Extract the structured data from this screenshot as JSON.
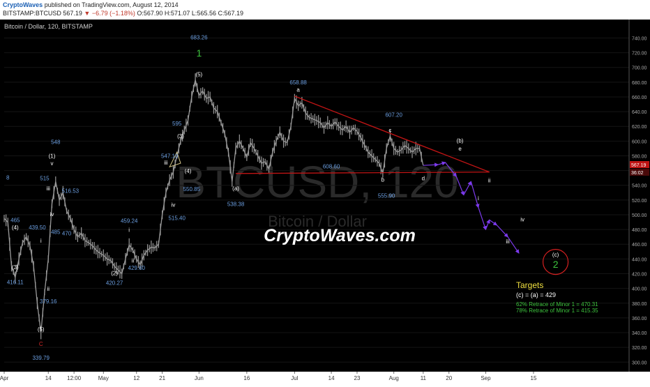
{
  "header": {
    "author": "CryptoWaves",
    "published": "published on TradingView.com, August 12, 2014",
    "symbol": "BITSTAMP:BTCUSD",
    "price": "567.19",
    "change": "▼ −6.79 (−1.18%)",
    "ohlc": "O:567.90 H:571.07 L:565.56 C:567.19"
  },
  "chart_data": {
    "type": "line",
    "title": "Bitcoin / Dollar, 120, BITSTAMP",
    "watermark": {
      "symbol": "BTCUSD, 120",
      "name": "Bitcoin / Dollar"
    },
    "signature": "CryptoWaves.com",
    "ylim": [
      287,
      748
    ],
    "xlim": [
      0,
      170
    ],
    "y_ticks": [
      300,
      320,
      340,
      360,
      380,
      400,
      420,
      440,
      460,
      480,
      500,
      520,
      540,
      560,
      580,
      600,
      620,
      640,
      660,
      680,
      700,
      720,
      740
    ],
    "x_ticks": [
      {
        "label": "Apr",
        "x": 0
      },
      {
        "label": "14",
        "x": 12
      },
      {
        "label": "12:00",
        "x": 19
      },
      {
        "label": "May",
        "x": 27
      },
      {
        "label": "12",
        "x": 36
      },
      {
        "label": "21",
        "x": 43
      },
      {
        "label": "Jun",
        "x": 53
      },
      {
        "label": "16",
        "x": 66
      },
      {
        "label": "Jul",
        "x": 79
      },
      {
        "label": "14",
        "x": 89
      },
      {
        "label": "23",
        "x": 96
      },
      {
        "label": "Aug",
        "x": 106
      },
      {
        "label": "11",
        "x": 114
      },
      {
        "label": "20",
        "x": 121
      },
      {
        "label": "Sep",
        "x": 131
      },
      {
        "label": "15",
        "x": 144
      }
    ],
    "price_label": {
      "value": 567.19,
      "text": "567.19",
      "countdown": "36:02"
    },
    "price_series": [
      [
        0,
        495
      ],
      [
        1,
        490
      ],
      [
        2,
        430
      ],
      [
        3,
        415
      ],
      [
        4,
        440
      ],
      [
        5,
        462
      ],
      [
        6,
        470
      ],
      [
        7,
        458
      ],
      [
        8,
        430
      ],
      [
        9,
        380
      ],
      [
        10,
        340
      ],
      [
        11,
        395
      ],
      [
        12,
        440
      ],
      [
        13,
        515
      ],
      [
        14,
        545
      ],
      [
        15,
        520
      ],
      [
        16,
        530
      ],
      [
        17,
        505
      ],
      [
        18,
        495
      ],
      [
        19,
        480
      ],
      [
        20,
        470
      ],
      [
        21,
        475
      ],
      [
        22,
        465
      ],
      [
        23,
        462
      ],
      [
        24,
        458
      ],
      [
        25,
        452
      ],
      [
        26,
        448
      ],
      [
        27,
        445
      ],
      [
        28,
        440
      ],
      [
        29,
        438
      ],
      [
        30,
        430
      ],
      [
        31,
        425
      ],
      [
        32,
        420
      ],
      [
        33,
        440
      ],
      [
        34,
        459
      ],
      [
        35,
        452
      ],
      [
        36,
        440
      ],
      [
        37,
        432
      ],
      [
        38,
        445
      ],
      [
        39,
        452
      ],
      [
        40,
        456
      ],
      [
        41,
        455
      ],
      [
        42,
        460
      ],
      [
        43,
        500
      ],
      [
        44,
        530
      ],
      [
        45,
        547
      ],
      [
        46,
        558
      ],
      [
        47,
        580
      ],
      [
        48,
        600
      ],
      [
        49,
        615
      ],
      [
        50,
        628
      ],
      [
        51,
        660
      ],
      [
        52,
        683
      ],
      [
        53,
        662
      ],
      [
        54,
        668
      ],
      [
        55,
        658
      ],
      [
        56,
        660
      ],
      [
        57,
        645
      ],
      [
        58,
        640
      ],
      [
        59,
        625
      ],
      [
        60,
        610
      ],
      [
        61,
        585
      ],
      [
        62,
        545
      ],
      [
        63,
        590
      ],
      [
        64,
        600
      ],
      [
        65,
        590
      ],
      [
        66,
        578
      ],
      [
        67,
        598
      ],
      [
        68,
        590
      ],
      [
        69,
        580
      ],
      [
        70,
        570
      ],
      [
        71,
        572
      ],
      [
        72,
        562
      ],
      [
        73,
        585
      ],
      [
        74,
        600
      ],
      [
        75,
        612
      ],
      [
        76,
        600
      ],
      [
        77,
        598
      ],
      [
        78,
        620
      ],
      [
        79,
        658
      ],
      [
        80,
        648
      ],
      [
        81,
        652
      ],
      [
        82,
        638
      ],
      [
        83,
        632
      ],
      [
        84,
        630
      ],
      [
        85,
        628
      ],
      [
        86,
        625
      ],
      [
        87,
        618
      ],
      [
        88,
        625
      ],
      [
        89,
        620
      ],
      [
        90,
        626
      ],
      [
        91,
        620
      ],
      [
        92,
        615
      ],
      [
        93,
        620
      ],
      [
        94,
        612
      ],
      [
        95,
        618
      ],
      [
        96,
        613
      ],
      [
        97,
        605
      ],
      [
        98,
        595
      ],
      [
        99,
        585
      ],
      [
        100,
        580
      ],
      [
        101,
        575
      ],
      [
        102,
        570
      ],
      [
        103,
        556
      ],
      [
        104,
        590
      ],
      [
        105,
        607
      ],
      [
        106,
        590
      ],
      [
        107,
        585
      ],
      [
        108,
        588
      ],
      [
        109,
        594
      ],
      [
        110,
        590
      ],
      [
        111,
        585
      ],
      [
        112,
        590
      ],
      [
        113,
        590
      ],
      [
        114,
        567
      ]
    ],
    "triangle_upper": [
      [
        79,
        661
      ],
      [
        132,
        558
      ]
    ],
    "triangle_lower": [
      [
        63,
        556
      ],
      [
        132,
        558
      ]
    ],
    "small_triangle": [
      [
        45,
        565
      ],
      [
        47,
        585
      ],
      [
        48,
        570
      ]
    ],
    "projection": [
      [
        114,
        567
      ],
      [
        118,
        568
      ],
      [
        120,
        571
      ],
      [
        123,
        552
      ],
      [
        125,
        527
      ],
      [
        127,
        545
      ],
      [
        129,
        510
      ],
      [
        131,
        480
      ],
      [
        132,
        493
      ],
      [
        134,
        486
      ],
      [
        137,
        470
      ],
      [
        140,
        448
      ]
    ],
    "wave_labels": [
      {
        "x": 13,
        "y": 577,
        "text": "(1)",
        "color": "#ffffff"
      },
      {
        "x": 13,
        "y": 567,
        "text": "v",
        "color": "#ffffff"
      },
      {
        "x": 11,
        "y": 547,
        "text": "515",
        "color": "#6b9ee0"
      },
      {
        "x": 12,
        "y": 533,
        "text": "iii",
        "color": "#ffffff"
      },
      {
        "x": 13,
        "y": 498,
        "text": "iv",
        "color": "#ffffff"
      },
      {
        "x": 18,
        "y": 530,
        "text": "516.53",
        "color": "#6b9ee0"
      },
      {
        "x": 14,
        "y": 596,
        "text": "548",
        "color": "#6b9ee0"
      },
      {
        "x": 3,
        "y": 490,
        "text": "465",
        "color": "#6b9ee0"
      },
      {
        "x": 3,
        "y": 480,
        "text": "(4)",
        "color": "#ffffff"
      },
      {
        "x": 9,
        "y": 480,
        "text": "439.50",
        "color": "#6b9ee0"
      },
      {
        "x": 14,
        "y": 474,
        "text": "485",
        "color": "#6b9ee0"
      },
      {
        "x": 17,
        "y": 472,
        "text": "470",
        "color": "#6b9ee0"
      },
      {
        "x": 10,
        "y": 462,
        "text": "i",
        "color": "#ffffff"
      },
      {
        "x": 3,
        "y": 426,
        "text": "(3)",
        "color": "#ffffff"
      },
      {
        "x": 3,
        "y": 406,
        "text": "416.11",
        "color": "#6b9ee0"
      },
      {
        "x": 12,
        "y": 397,
        "text": "ii",
        "color": "#ffffff"
      },
      {
        "x": 12,
        "y": 380,
        "text": "379.16",
        "color": "#6b9ee0"
      },
      {
        "x": 10,
        "y": 342,
        "text": "(5)",
        "color": "#ffffff"
      },
      {
        "x": 10,
        "y": 322,
        "text": "C",
        "color": "#d92a2a"
      },
      {
        "x": 10,
        "y": 303,
        "text": "339.79",
        "color": "#6b9ee0"
      },
      {
        "x": 1,
        "y": 548,
        "text": "8",
        "color": "#6b9ee0"
      },
      {
        "x": 34,
        "y": 489,
        "text": "459.24",
        "color": "#6b9ee0"
      },
      {
        "x": 34,
        "y": 477,
        "text": "i",
        "color": "#ffffff"
      },
      {
        "x": 30,
        "y": 418,
        "text": "(2)",
        "color": "#ffffff"
      },
      {
        "x": 30,
        "y": 405,
        "text": "420.27",
        "color": "#6b9ee0"
      },
      {
        "x": 35,
        "y": 435,
        "text": "ii",
        "color": "#ffffff"
      },
      {
        "x": 36,
        "y": 425,
        "text": "429.60",
        "color": "#6b9ee0"
      },
      {
        "x": 45,
        "y": 577,
        "text": "547.10",
        "color": "#6b9ee0"
      },
      {
        "x": 44,
        "y": 568,
        "text": "iii",
        "color": "#ffffff"
      },
      {
        "x": 46,
        "y": 511,
        "text": "iv",
        "color": "#ffffff"
      },
      {
        "x": 47,
        "y": 493,
        "text": "515.40",
        "color": "#6b9ee0"
      },
      {
        "x": 48,
        "y": 604,
        "text": "(3)",
        "color": "#ffffff"
      },
      {
        "x": 47,
        "y": 621,
        "text": "595",
        "color": "#6b9ee0"
      },
      {
        "x": 50,
        "y": 557,
        "text": "(4)",
        "color": "#ffffff"
      },
      {
        "x": 51,
        "y": 532,
        "text": "550.85",
        "color": "#6b9ee0"
      },
      {
        "x": 53,
        "y": 688,
        "text": "(5)",
        "color": "#ffffff"
      },
      {
        "x": 53,
        "y": 738,
        "text": "683.26",
        "color": "#6b9ee0"
      },
      {
        "x": 53,
        "y": 715,
        "text": "1",
        "color": "#3ec43e",
        "size": 14
      },
      {
        "x": 63,
        "y": 533,
        "text": "(a)",
        "color": "#ffffff"
      },
      {
        "x": 63,
        "y": 512,
        "text": "538.38",
        "color": "#6b9ee0"
      },
      {
        "x": 80,
        "y": 677,
        "text": "658.88",
        "color": "#6b9ee0"
      },
      {
        "x": 80,
        "y": 667,
        "text": "a",
        "color": "#ffffff"
      },
      {
        "x": 89,
        "y": 563,
        "text": "608.60",
        "color": "#6b9ee0"
      },
      {
        "x": 103,
        "y": 545,
        "text": "b",
        "color": "#ffffff"
      },
      {
        "x": 104,
        "y": 523,
        "text": "555.90",
        "color": "#6b9ee0"
      },
      {
        "x": 106,
        "y": 633,
        "text": "607.20",
        "color": "#6b9ee0"
      },
      {
        "x": 105,
        "y": 612,
        "text": "c",
        "color": "#ffffff"
      },
      {
        "x": 114,
        "y": 547,
        "text": "d",
        "color": "#ffffff"
      },
      {
        "x": 124,
        "y": 598,
        "text": "(b)",
        "color": "#ffffff"
      },
      {
        "x": 124,
        "y": 587,
        "text": "e",
        "color": "#ffffff"
      },
      {
        "x": 129,
        "y": 520,
        "text": "i",
        "color": "#ffffff"
      },
      {
        "x": 132,
        "y": 544,
        "text": "ii",
        "color": "#ffffff"
      },
      {
        "x": 137,
        "y": 461,
        "text": "iii",
        "color": "#ffffff"
      },
      {
        "x": 141,
        "y": 491,
        "text": "iv",
        "color": "#ffffff"
      },
      {
        "x": 150,
        "y": 443,
        "text": "(c)",
        "color": "#ffffff"
      },
      {
        "x": 150,
        "y": 428,
        "text": "2",
        "color": "#3ec43e",
        "size": 14
      }
    ],
    "target_circle": {
      "x": 150,
      "y": 436
    },
    "targets": {
      "title": "Targets",
      "line1": "(c) = (a) = 429",
      "line2": "62% Retrace of Minor 1 = 470.31",
      "line3": "78% Retrace of Minor 1 = 415.35"
    }
  },
  "colors": {
    "bg": "#000000",
    "candle": "#9a9a9a",
    "trend": "#c01414",
    "projection": "#7c3aed",
    "label_blue": "#6b9ee0",
    "targets_title": "#f0e040",
    "targets_green": "#3ec43e",
    "price_box": "#c01414"
  }
}
